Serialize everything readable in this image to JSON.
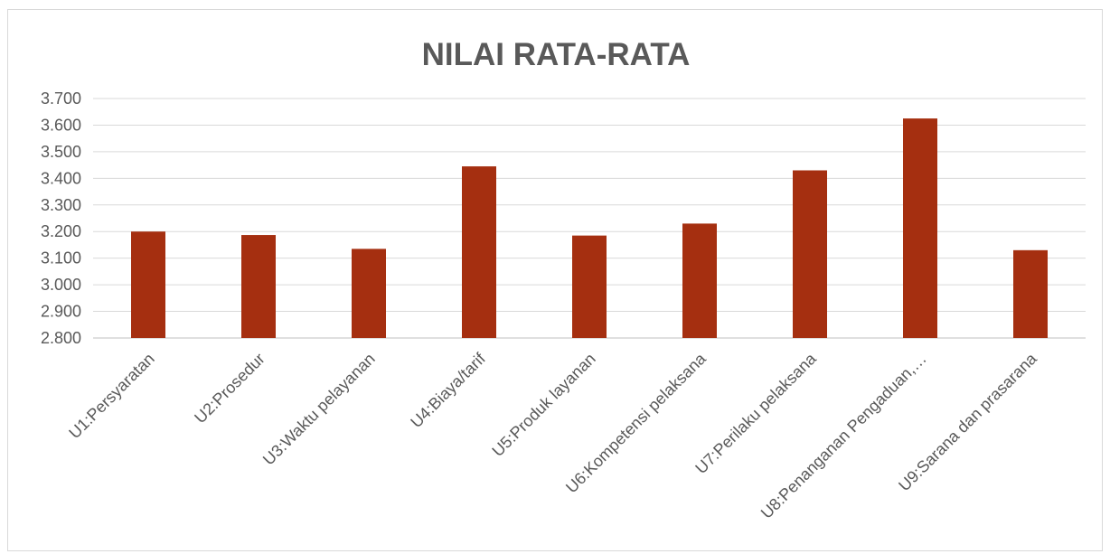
{
  "chart_data": {
    "type": "bar",
    "title": "NILAI RATA-RATA",
    "categories": [
      "U1:Persyaratan",
      "U2:Prosedur",
      "U3:Waktu pelayanan",
      "U4:Biaya/tarif",
      "U5:Produk layanan",
      "U6:Kompetensi pelaksana",
      "U7:Perilaku pelaksana",
      "U8:Penanganan Pengaduan,…",
      "U9:Sarana dan prasarana"
    ],
    "values": [
      3.2,
      3.187,
      3.135,
      3.445,
      3.185,
      3.23,
      3.43,
      3.625,
      3.13
    ],
    "ylim": [
      2.8,
      3.7
    ],
    "yticks": [
      "2.800",
      "2.900",
      "3.000",
      "3.100",
      "3.200",
      "3.300",
      "3.400",
      "3.500",
      "3.600",
      "3.700"
    ],
    "xlabel": "",
    "ylabel": "",
    "bar_color": "#a52f10",
    "grid": true,
    "legend": "none"
  }
}
